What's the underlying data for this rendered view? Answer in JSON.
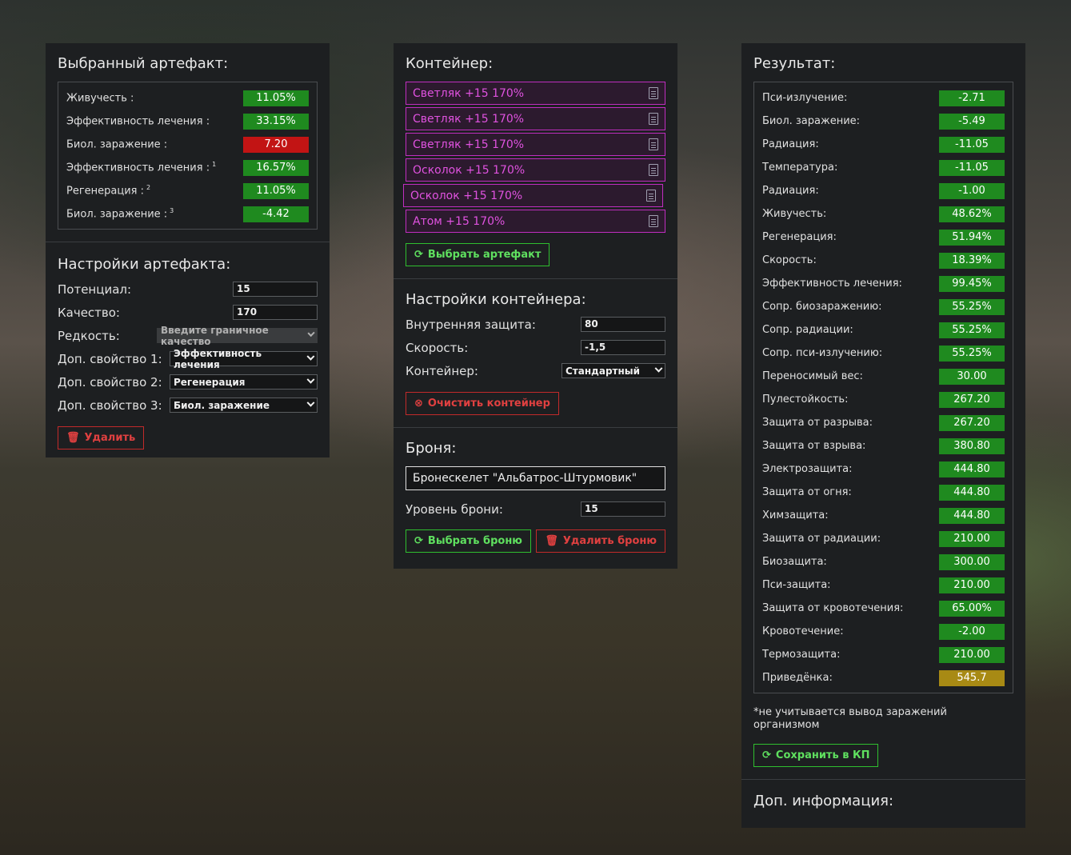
{
  "artifact_panel": {
    "title": "Выбранный артефакт:",
    "stats": [
      {
        "label": "Живучесть :",
        "sup": "",
        "value": "11.05%",
        "color": "green"
      },
      {
        "label": "Эффективность лечения :",
        "sup": "",
        "value": "33.15%",
        "color": "green"
      },
      {
        "label": "Биол. заражение :",
        "sup": "",
        "value": "7.20",
        "color": "red"
      },
      {
        "label": "Эффективность лечения :",
        "sup": "1",
        "value": "16.57%",
        "color": "green"
      },
      {
        "label": "Регенерация :",
        "sup": "2",
        "value": "11.05%",
        "color": "green"
      },
      {
        "label": "Биол. заражение :",
        "sup": "3",
        "value": "-4.42",
        "color": "green"
      }
    ],
    "settings_title": "Настройки артефакта:",
    "potential_label": "Потенциал:",
    "potential_value": "15",
    "quality_label": "Качество:",
    "quality_value": "170",
    "rarity_label": "Редкость:",
    "rarity_value": "Введите граничное качество",
    "prop1_label": "Доп. свойство 1:",
    "prop1_value": "Эффективность лечения",
    "prop2_label": "Доп. свойство 2:",
    "prop2_value": "Регенерация",
    "prop3_label": "Доп. свойство 3:",
    "prop3_value": "Биол. заражение",
    "delete_label": "Удалить"
  },
  "container_panel": {
    "title": "Контейнер:",
    "items": [
      "Светляк +15 170%",
      "Светляк +15 170%",
      "Светляк +15 170%",
      "Осколок +15 170%",
      "Осколок +15 170%",
      "Атом +15 170%"
    ],
    "select_artifact_label": "Выбрать артефакт",
    "settings_title": "Настройки контейнера:",
    "inner_protection_label": "Внутренняя защита:",
    "inner_protection_value": "80",
    "speed_label": "Скорость:",
    "speed_value": "-1,5",
    "container_label": "Контейнер:",
    "container_value": "Стандартный",
    "clear_label": "Очистить контейнер",
    "armor_title": "Броня:",
    "armor_name": "Бронескелет \"Альбатрос-Штурмовик\"",
    "armor_level_label": "Уровень брони:",
    "armor_level_value": "15",
    "select_armor_label": "Выбрать броню",
    "delete_armor_label": "Удалить броню"
  },
  "result_panel": {
    "title": "Результат:",
    "stats": [
      {
        "label": "Пси-излучение:",
        "value": "-2.71",
        "color": "green"
      },
      {
        "label": "Биол. заражение:",
        "value": "-5.49",
        "color": "green"
      },
      {
        "label": "Радиация:",
        "value": "-11.05",
        "color": "green"
      },
      {
        "label": "Температура:",
        "value": "-11.05",
        "color": "green"
      },
      {
        "label": "Радиация:",
        "value": "-1.00",
        "color": "green"
      },
      {
        "label": "Живучесть:",
        "value": "48.62%",
        "color": "green"
      },
      {
        "label": "Регенерация:",
        "value": "51.94%",
        "color": "green"
      },
      {
        "label": "Скорость:",
        "value": "18.39%",
        "color": "green"
      },
      {
        "label": "Эффективность лечения:",
        "value": "99.45%",
        "color": "green"
      },
      {
        "label": "Сопр. биозаражению:",
        "value": "55.25%",
        "color": "green"
      },
      {
        "label": "Сопр. радиации:",
        "value": "55.25%",
        "color": "green"
      },
      {
        "label": "Сопр. пси-излучению:",
        "value": "55.25%",
        "color": "green"
      },
      {
        "label": "Переносимый вес:",
        "value": "30.00",
        "color": "green"
      },
      {
        "label": "Пулестойкость:",
        "value": "267.20",
        "color": "green"
      },
      {
        "label": "Защита от разрыва:",
        "value": "267.20",
        "color": "green"
      },
      {
        "label": "Защита от взрыва:",
        "value": "380.80",
        "color": "green"
      },
      {
        "label": "Электрозащита:",
        "value": "444.80",
        "color": "green"
      },
      {
        "label": "Защита от огня:",
        "value": "444.80",
        "color": "green"
      },
      {
        "label": "Химзащита:",
        "value": "444.80",
        "color": "green"
      },
      {
        "label": "Защита от радиации:",
        "value": "210.00",
        "color": "green"
      },
      {
        "label": "Биозащита:",
        "value": "300.00",
        "color": "green"
      },
      {
        "label": "Пси-защита:",
        "value": "210.00",
        "color": "green"
      },
      {
        "label": "Защита от кровотечения:",
        "value": "65.00%",
        "color": "green"
      },
      {
        "label": "Кровотечение:",
        "value": "-2.00",
        "color": "green"
      },
      {
        "label": "Термозащита:",
        "value": "210.00",
        "color": "green"
      },
      {
        "label": "Приведёнка:",
        "value": "545.7",
        "color": "gold"
      }
    ],
    "note": "*не учитывается вывод заражений организмом",
    "save_label": "Сохранить в КП",
    "extra_title": "Доп. информация:"
  },
  "colors": {
    "green": "#1f8a1f",
    "red": "#c21414",
    "gold": "#a88a14",
    "panel": "#1d1f21"
  }
}
